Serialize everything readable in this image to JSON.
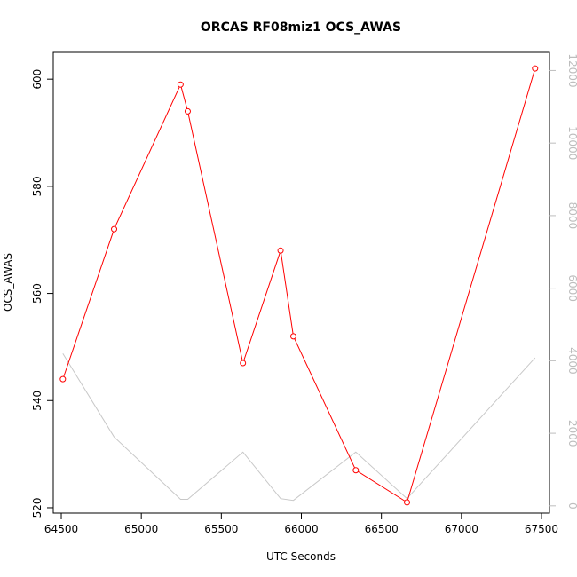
{
  "chart_data": {
    "type": "line",
    "title": "ORCAS RF08miz1 OCS_AWAS",
    "xlabel": "UTC Seconds",
    "ylabel": "OCS_AWAS",
    "xlim": [
      64450,
      67550
    ],
    "ylim": [
      519,
      605
    ],
    "y2lim": [
      -200,
      12500
    ],
    "x_ticks": [
      64500,
      65000,
      65500,
      66000,
      66500,
      67000,
      67500
    ],
    "y_ticks": [
      520,
      540,
      560,
      580,
      600
    ],
    "y2_ticks": [
      0,
      2000,
      4000,
      6000,
      8000,
      10000,
      12000
    ],
    "grid": false,
    "series": [
      {
        "axis": "left",
        "color": "#ff0000",
        "marker": "circle",
        "x": [
          64510,
          64830,
          65245,
          65290,
          65635,
          65870,
          65950,
          66340,
          66660,
          67460
        ],
        "values": [
          544,
          572,
          599,
          594,
          547,
          568,
          552,
          527,
          521,
          602
        ]
      },
      {
        "axis": "right",
        "color": "#c8c8c8",
        "marker": "none",
        "x": [
          64510,
          64830,
          65245,
          65290,
          65635,
          65870,
          65950,
          66340,
          66660,
          67460
        ],
        "values": [
          4200,
          1900,
          180,
          180,
          1480,
          200,
          150,
          1480,
          200,
          4080
        ]
      }
    ]
  }
}
